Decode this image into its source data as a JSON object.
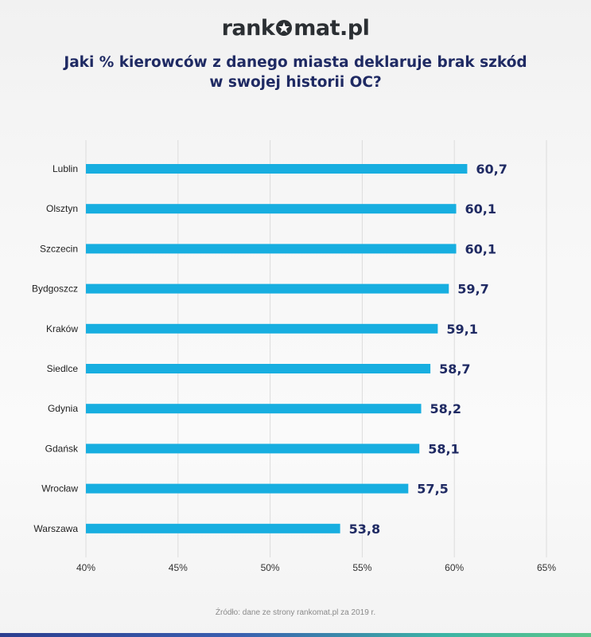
{
  "logo": {
    "text_left": "rank",
    "text_right": "mat.pl"
  },
  "title": {
    "line1": "Jaki % kierowców z danego miasta deklaruje brak szkód",
    "line2": "w swojej historii OC?"
  },
  "source": "Źródło: dane ze strony rankomat.pl za 2019 r.",
  "colors": {
    "bar": "#17aee0",
    "value_label": "#1f2a63",
    "title": "#1f2a63",
    "grid": "#dcdcdc"
  },
  "chart_data": {
    "type": "bar",
    "orientation": "horizontal",
    "categories": [
      "Lublin",
      "Olsztyn",
      "Szczecin",
      "Bydgoszcz",
      "Kraków",
      "Siedlce",
      "Gdynia",
      "Gdańsk",
      "Wrocław",
      "Warszawa"
    ],
    "values": [
      60.7,
      60.1,
      60.1,
      59.7,
      59.1,
      58.7,
      58.2,
      58.1,
      57.5,
      53.8
    ],
    "value_labels": [
      "60,7",
      "60,1",
      "60,1",
      "59,7",
      "59,1",
      "58,7",
      "58,2",
      "58,1",
      "57,5",
      "53,8"
    ],
    "xlim": [
      40,
      65
    ],
    "xticks": [
      40,
      45,
      50,
      55,
      60,
      65
    ],
    "xtick_labels": [
      "40%",
      "45%",
      "50%",
      "55%",
      "60%",
      "65%"
    ],
    "grid": true,
    "legend": false
  }
}
